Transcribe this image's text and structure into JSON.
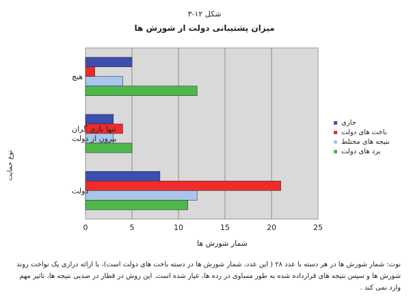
{
  "figure_label": "شکل ۱۲-۳",
  "chart_data": {
    "type": "bar",
    "orientation": "horizontal",
    "title": "میزان پشتیبانی دولت از شورش ها",
    "xlabel": "شمار شورش ها",
    "ylabel": "نوع حمایت",
    "xlim": [
      0,
      25
    ],
    "xticks": [
      0,
      5,
      10,
      15,
      20,
      25
    ],
    "grid": true,
    "legend_position": "right",
    "categories": [
      "هیچ",
      "تنها بازی گران بیرون از دولت",
      "دولت"
    ],
    "category_lines": [
      [
        "هیچ"
      ],
      [
        "تنها بازی گران",
        "بیرون از دولت"
      ],
      [
        "دولت"
      ]
    ],
    "series": [
      {
        "name": "جاری",
        "color": "#3b4fb0",
        "values": [
          5,
          3,
          8
        ]
      },
      {
        "name": "باخت های دولت",
        "color": "#ef2b2b",
        "values": [
          1,
          4,
          21
        ]
      },
      {
        "name": "نتیجه های مختلط",
        "color": "#a9c6ec",
        "values": [
          4,
          3,
          12
        ]
      },
      {
        "name": "برد های دولت",
        "color": "#4fb84a",
        "values": [
          12,
          5,
          11
        ]
      }
    ]
  },
  "note": "نوت: شمار شورش ها در هر دسته با عدد ۲۸ ( این عدد، شمار شورش ها در دسته باخت های دولت است)، با ارائه درازی یک نواخت روند شورش ها و سپس نتیجه های قرارداده شده به طور مساوی در رده ها، عیار شده است. این روش در قطار در صدیی نتیجه ها، تاثیر مهم وارد نمی کند ."
}
